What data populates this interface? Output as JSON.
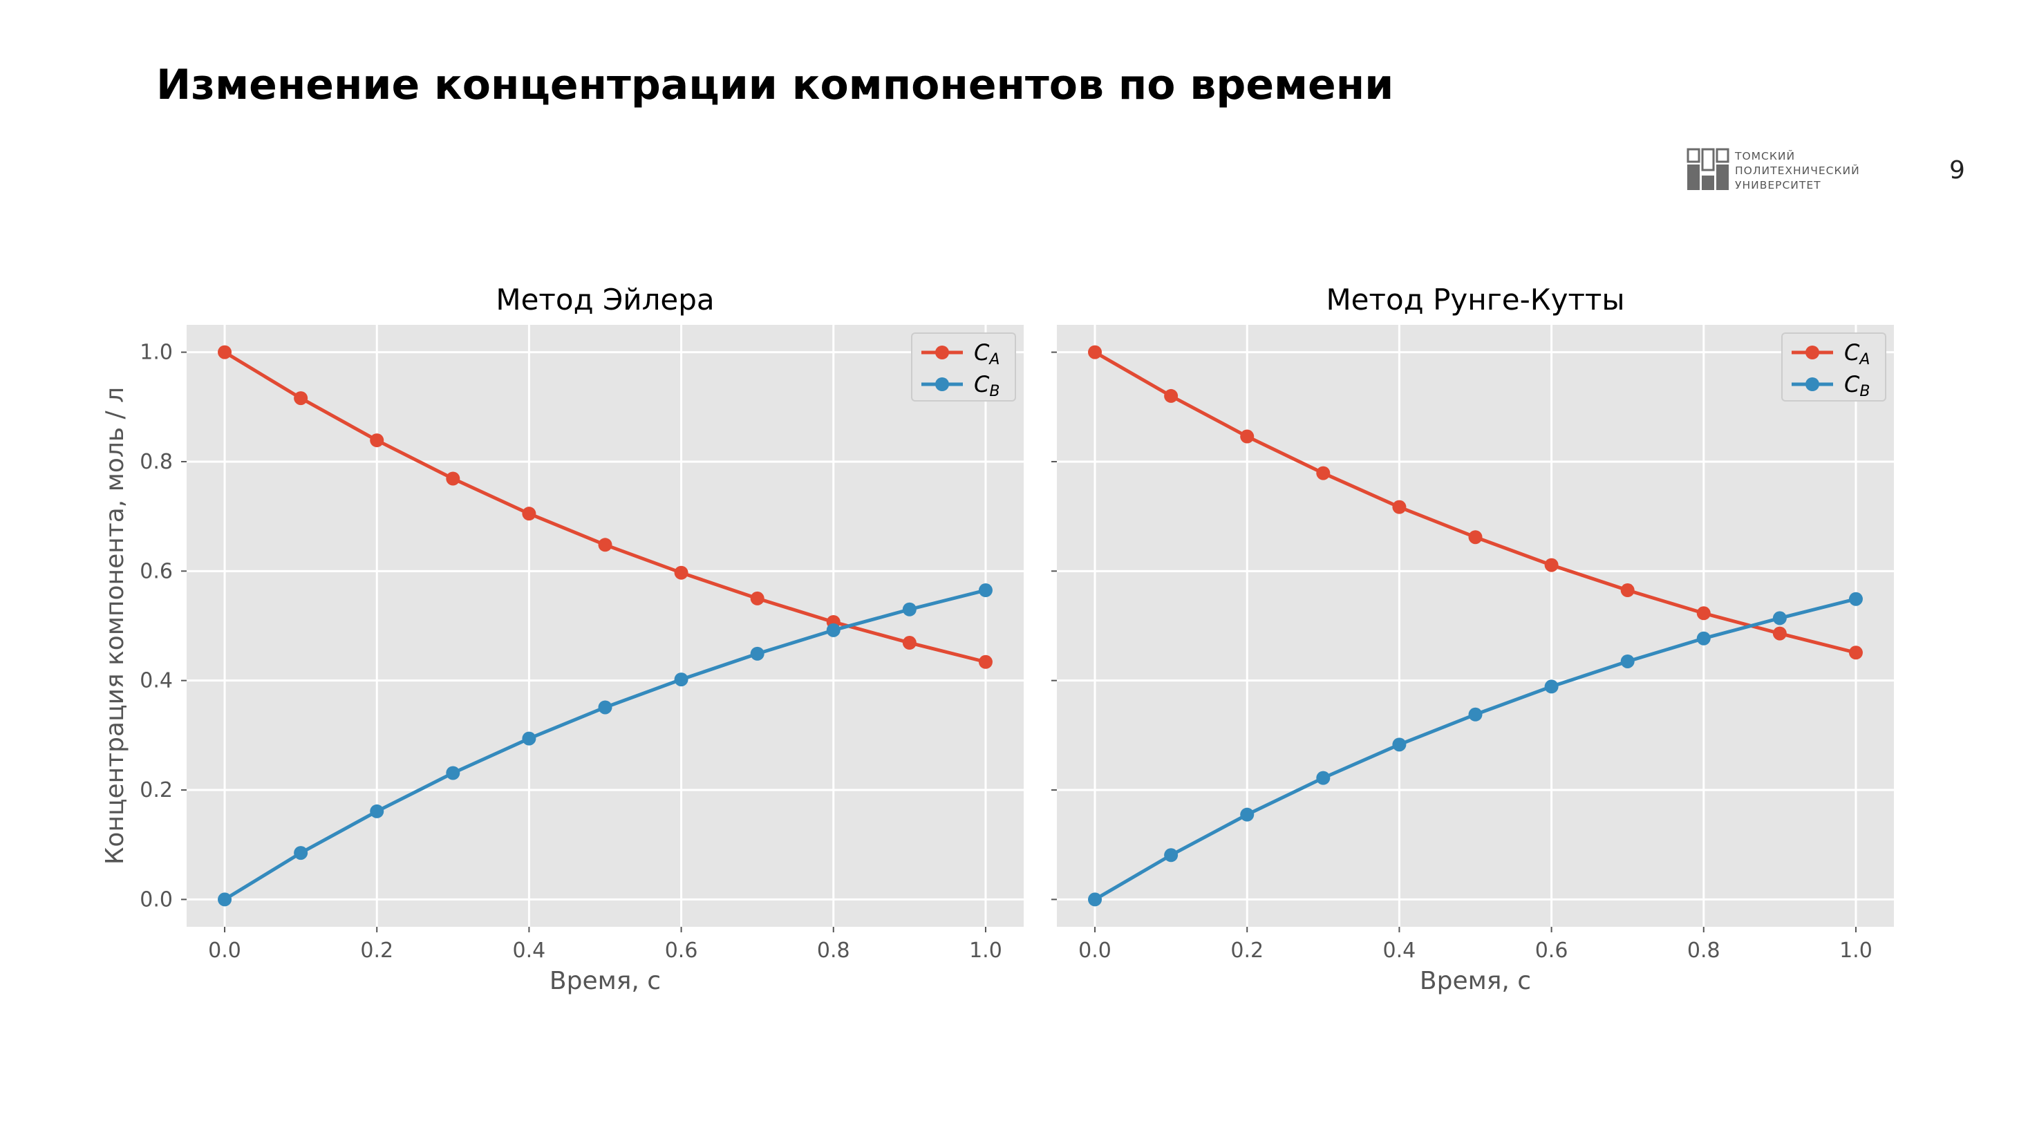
{
  "slide": {
    "title": "Изменение концентрации компонентов по времени",
    "page_number": "9",
    "logo_lines": [
      "ТОМСКИЙ",
      "ПОЛИТЕХНИЧЕСКИЙ",
      "УНИВЕРСИТЕТ"
    ]
  },
  "colors": {
    "series_a": "#E24A33",
    "series_b": "#348ABD",
    "plot_background": "#E5E5E5",
    "grid": "#FFFFFF",
    "logo": "#6b6b6b"
  },
  "chart_data": [
    {
      "type": "line",
      "title": "Метод Эйлера",
      "xlabel": "Время, с",
      "ylabel": "Концентрация компонента, моль / л",
      "xlim": [
        -0.05,
        1.05
      ],
      "ylim": [
        -0.05,
        1.05
      ],
      "x_ticks": [
        "0.0",
        "0.2",
        "0.4",
        "0.6",
        "0.8",
        "1.0"
      ],
      "y_ticks": [
        "0.0",
        "0.2",
        "0.4",
        "0.6",
        "0.8",
        "1.0"
      ],
      "grid": true,
      "legend_position": "top-right",
      "x": [
        0.0,
        0.1,
        0.2,
        0.3,
        0.4,
        0.5,
        0.6,
        0.7,
        0.8,
        0.9,
        1.0
      ],
      "series": [
        {
          "name": "C",
          "subscript": "A",
          "color": "#E24A33",
          "values": [
            1.0,
            0.916,
            0.839,
            0.769,
            0.705,
            0.648,
            0.597,
            0.55,
            0.507,
            0.469,
            0.434
          ]
        },
        {
          "name": "C",
          "subscript": "B",
          "color": "#348ABD",
          "values": [
            0.0,
            0.085,
            0.161,
            0.231,
            0.294,
            0.351,
            0.402,
            0.449,
            0.492,
            0.53,
            0.565
          ]
        }
      ]
    },
    {
      "type": "line",
      "title": "Метод Рунге-Кутты",
      "xlabel": "Время, с",
      "ylabel": "",
      "xlim": [
        -0.05,
        1.05
      ],
      "ylim": [
        -0.05,
        1.05
      ],
      "x_ticks": [
        "0.0",
        "0.2",
        "0.4",
        "0.6",
        "0.8",
        "1.0"
      ],
      "y_ticks": [],
      "grid": true,
      "legend_position": "top-right",
      "x": [
        0.0,
        0.1,
        0.2,
        0.3,
        0.4,
        0.5,
        0.6,
        0.7,
        0.8,
        0.9,
        1.0
      ],
      "series": [
        {
          "name": "C",
          "subscript": "A",
          "color": "#E24A33",
          "values": [
            1.0,
            0.92,
            0.846,
            0.779,
            0.717,
            0.662,
            0.611,
            0.565,
            0.523,
            0.486,
            0.451
          ]
        },
        {
          "name": "C",
          "subscript": "B",
          "color": "#348ABD",
          "values": [
            0.0,
            0.081,
            0.155,
            0.222,
            0.283,
            0.338,
            0.389,
            0.435,
            0.477,
            0.514,
            0.549
          ]
        }
      ]
    }
  ]
}
